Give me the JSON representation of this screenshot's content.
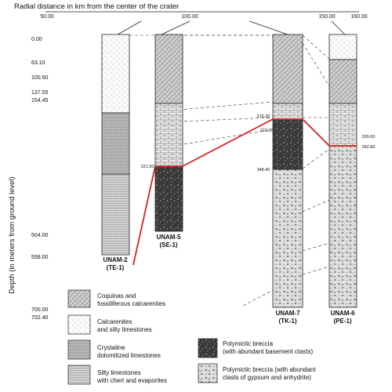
{
  "x_axis": {
    "title": "Radial distance in km from the center of the crater",
    "ticks": [
      "50.00",
      "100.00",
      "150.00",
      "160.00"
    ]
  },
  "y_axis": {
    "title": "Depth (in meters from ground level)",
    "ticks": [
      "0.00",
      "63.10",
      "100.60",
      "137.55",
      "154.45",
      "504.00",
      "558.00",
      "700.00",
      "702.40"
    ]
  },
  "wells": [
    {
      "name": "UNAM-2",
      "code": "(TE-1)"
    },
    {
      "name": "UNAM-5",
      "code": "(SE-1)",
      "top_label": "221.50"
    },
    {
      "name": "UNAM-7",
      "code": "(TK-1)",
      "labels": [
        "215.30",
        "222.20",
        "348.40"
      ]
    },
    {
      "name": "UNAM-6",
      "code": "(PE-1)",
      "labels": [
        "265.60",
        "282.80"
      ]
    }
  ],
  "legend": [
    {
      "line1": "Coquinas and",
      "line2": "fossiliferous calcarenites"
    },
    {
      "line1": "Calcarenites",
      "line2": "and silty limestones"
    },
    {
      "line1": "Crystaline",
      "line2": "dolomitized limestones"
    },
    {
      "line1": "Silty limestones",
      "line2": "with chert and evaporites"
    },
    {
      "line1": "Polymictic breccia",
      "line2": "(with abundant basement clasts)"
    },
    {
      "line1": "Polymictic breccia (with abundant",
      "line2": "clasts of gypsum and anhydrite)"
    }
  ],
  "colors": {
    "correlation_line": "#dd2020",
    "dash": "#333333"
  }
}
